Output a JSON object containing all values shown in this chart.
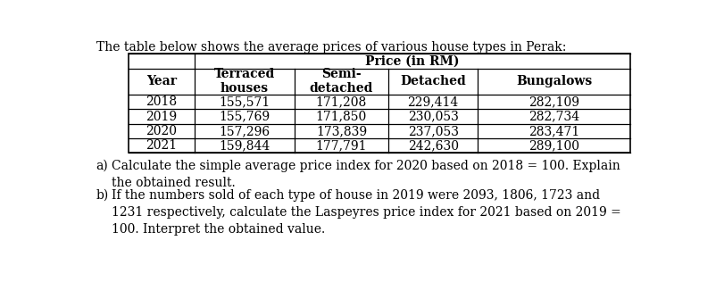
{
  "title": "The table below shows the average prices of various house types in Perak:",
  "price_header": "Price (in RM)",
  "col_headers": [
    "Year",
    "Terraced\nhouses",
    "Semi-\ndetached",
    "Detached",
    "Bungalows"
  ],
  "rows": [
    [
      "2018",
      "155,571",
      "171,208",
      "229,414",
      "282,109"
    ],
    [
      "2019",
      "155,769",
      "171,850",
      "230,053",
      "282,734"
    ],
    [
      "2020",
      "157,296",
      "173,839",
      "237,053",
      "283,471"
    ],
    [
      "2021",
      "159,844",
      "177,791",
      "242,630",
      "289,100"
    ]
  ],
  "qa_label": "a)",
  "qa_text": "Calculate the simple average price index for 2020 based on 2018 = 100. Explain\nthe obtained result.",
  "qb_label": "b)",
  "qb_text": "If the numbers sold of each type of house in 2019 were 2093, 1806, 1723 and\n1231 respectively, calculate the Laspeyres price index for 2021 based on 2019 =\n100. Interpret the obtained value.",
  "background_color": "#ffffff",
  "text_color": "#000000",
  "font_size": 10.0
}
